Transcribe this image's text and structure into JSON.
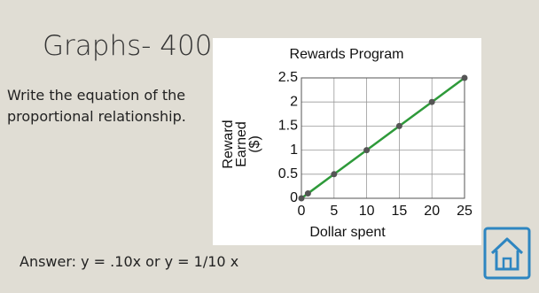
{
  "slide_title": "Graphs- 400",
  "question": "Write the equation of the proportional relationship.",
  "answer": "Answer: y = .10x or y = 1/10 x",
  "chart_data": {
    "type": "line",
    "title": "Rewards Program",
    "xlabel": "Dollar spent",
    "ylabel": [
      "Reward",
      "Earned",
      "($)"
    ],
    "x": [
      0,
      1,
      5,
      10,
      15,
      20,
      25
    ],
    "values": [
      0,
      0.1,
      0.5,
      1,
      1.5,
      2,
      2.5
    ],
    "color": "#2e9a3a",
    "marker_color": "#555555",
    "xlim": [
      0,
      25
    ],
    "xticks": [
      0,
      5,
      10,
      15,
      20,
      25
    ],
    "ylim": [
      0,
      2.5
    ],
    "yticks": [
      0,
      0.5,
      1,
      1.5,
      2,
      2.5
    ],
    "grid": true
  }
}
